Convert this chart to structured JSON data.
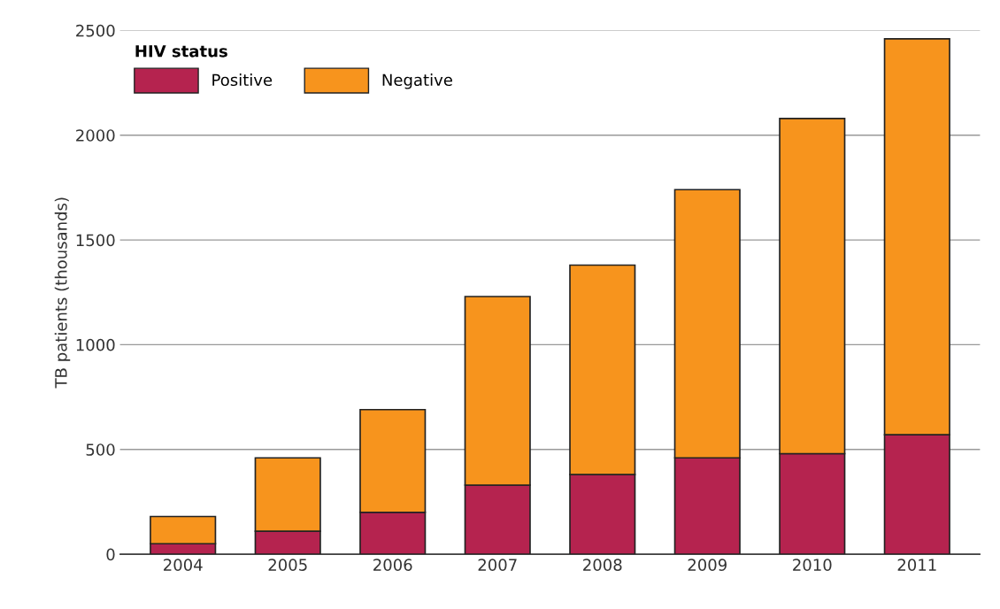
{
  "chart_data": {
    "type": "bar",
    "stacked": true,
    "ylabel": "TB patients (thousands)",
    "legend_title": "HIV status",
    "legend": "top left",
    "categories": [
      "2004",
      "2005",
      "2006",
      "2007",
      "2008",
      "2009",
      "2010",
      "2011"
    ],
    "series": [
      {
        "name": "Positive",
        "color": "#b5234f",
        "values": [
          50,
          110,
          200,
          330,
          380,
          460,
          480,
          570
        ]
      },
      {
        "name": "Negative",
        "color": "#f7941d",
        "values": [
          130,
          350,
          490,
          900,
          1000,
          1280,
          1600,
          1890
        ]
      }
    ],
    "ylim": [
      0,
      2500
    ],
    "yticks": [
      0,
      500,
      1000,
      1500,
      2000,
      2500
    ],
    "grid": "y"
  }
}
